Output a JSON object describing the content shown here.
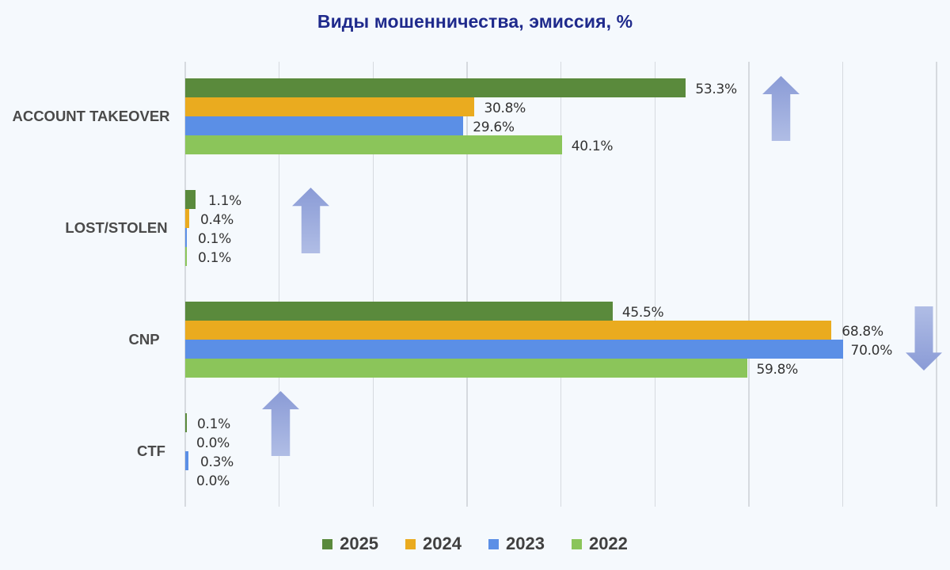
{
  "chart_data": {
    "type": "bar",
    "orientation": "horizontal",
    "title": "Виды мошенничества, эмиссия, %",
    "xlabel": "",
    "ylabel": "",
    "xlim": [
      0,
      80
    ],
    "grid": true,
    "gridline_step": 10,
    "legend_position": "bottom",
    "categories": [
      "ACCOUNT TAKEOVER",
      "LOST/STOLEN",
      "CNP",
      "CTF"
    ],
    "series": [
      {
        "name": "2025",
        "color": "#5a8a3c",
        "values": [
          53.3,
          1.1,
          45.5,
          0.1
        ],
        "labels": [
          "53.3%",
          "1.1%",
          "45.5%",
          "0.1%"
        ]
      },
      {
        "name": "2024",
        "color": "#eaab1f",
        "values": [
          30.8,
          0.4,
          68.8,
          0.0
        ],
        "labels": [
          "30.8%",
          "0.4%",
          "68.8%",
          "0.0%"
        ]
      },
      {
        "name": "2023",
        "color": "#5b8fe6",
        "values": [
          29.6,
          0.1,
          70.0,
          0.3
        ],
        "labels": [
          "29.6%",
          "0.1%",
          "70.0%",
          "0.3%"
        ]
      },
      {
        "name": "2022",
        "color": "#8bc55a",
        "values": [
          40.1,
          0.1,
          59.8,
          0.0
        ],
        "labels": [
          "40.1%",
          "0.1%",
          "59.8%",
          "0.0%"
        ]
      }
    ],
    "annotations": [
      {
        "type": "arrow",
        "direction": "up",
        "category": "ACCOUNT TAKEOVER",
        "meaning": "trend increasing"
      },
      {
        "type": "arrow",
        "direction": "up",
        "category": "LOST/STOLEN",
        "meaning": "trend increasing"
      },
      {
        "type": "arrow",
        "direction": "down",
        "category": "CNP",
        "meaning": "trend decreasing"
      },
      {
        "type": "arrow",
        "direction": "up",
        "category": "CTF",
        "meaning": "trend increasing"
      }
    ]
  },
  "colors": {
    "background": "#f5f9fd",
    "title": "#1f2a8c",
    "arrow_dark": "#8a9bd6",
    "arrow_light": "#b0bde5"
  }
}
